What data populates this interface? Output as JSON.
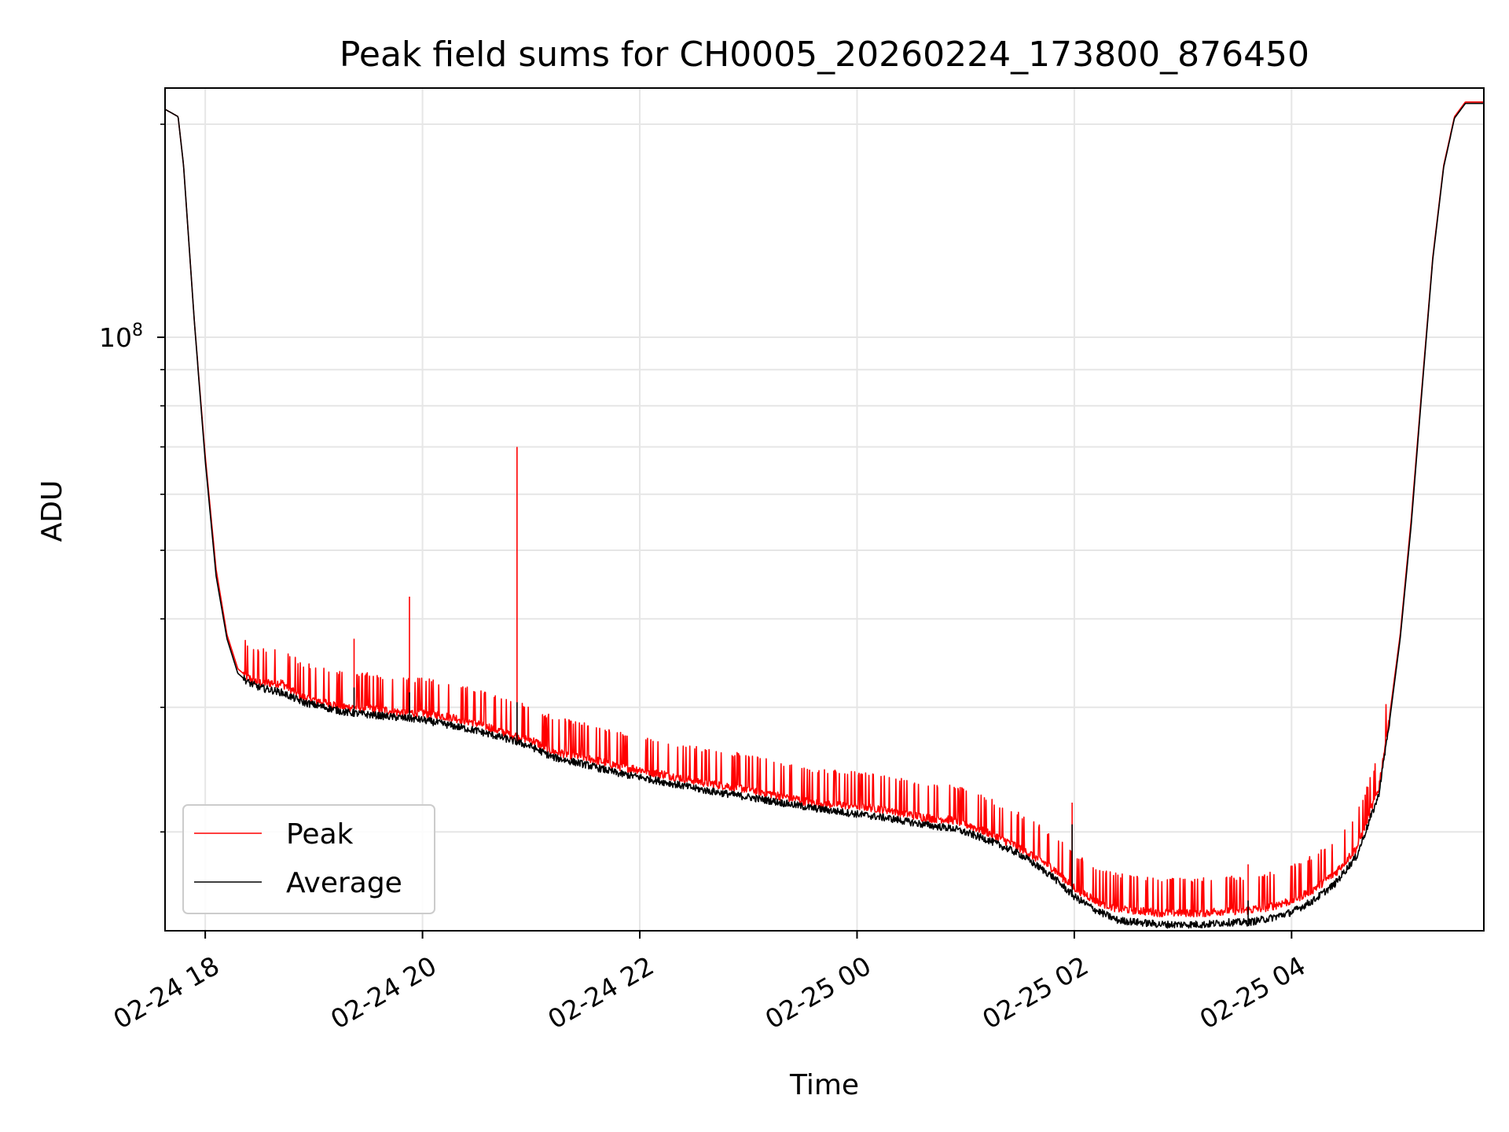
{
  "chart_data": {
    "type": "line",
    "title": "Peak field sums for CH0005_20260224_173800_876450",
    "xlabel": "Time",
    "ylabel": "ADU",
    "yscale": "log",
    "ylim": [
      14500000,
      225000000
    ],
    "xlim_hours": [
      -0.37,
      11.77
    ],
    "x_unit": "hours since 02-24 18:00",
    "grid": true,
    "legend_position": "lower-left",
    "x_tick_labels": [
      "02-24 18",
      "02-24 20",
      "02-24 22",
      "02-25 00",
      "02-25 02",
      "02-25 04"
    ],
    "x_tick_hours": [
      0,
      2,
      4,
      6,
      8,
      10
    ],
    "y_major_label": "10",
    "y_major_exponent": "8",
    "y_major_value": 100000000,
    "y_minor_values": [
      20000000,
      30000000,
      40000000,
      50000000,
      60000000,
      70000000,
      80000000,
      90000000,
      200000000
    ],
    "series": [
      {
        "name": "Peak",
        "color": "#ff0000",
        "x": [
          -0.37,
          -0.25,
          -0.2,
          -0.1,
          0.0,
          0.1,
          0.2,
          0.3,
          0.4,
          0.5,
          0.7,
          0.9,
          1.1,
          1.3,
          1.5,
          1.8,
          2.0,
          2.3,
          2.5,
          2.8,
          3.0,
          3.2,
          3.5,
          3.8,
          4.0,
          4.3,
          4.6,
          5.0,
          5.3,
          5.6,
          6.0,
          6.3,
          6.6,
          6.9,
          7.2,
          7.5,
          7.8,
          8.0,
          8.2,
          8.4,
          8.6,
          8.8,
          9.0,
          9.2,
          9.4,
          9.6,
          9.8,
          10.0,
          10.2,
          10.4,
          10.6,
          10.8,
          10.9,
          11.0,
          11.1,
          11.2,
          11.3,
          11.4,
          11.5,
          11.6,
          11.77
        ],
        "y": [
          210000000,
          205000000,
          175000000,
          105000000,
          68000000,
          47000000,
          38000000,
          34000000,
          33000000,
          32500000,
          32500000,
          31000000,
          30500000,
          30000000,
          30000000,
          29500000,
          29500000,
          29000000,
          28500000,
          27500000,
          27000000,
          26000000,
          25500000,
          24800000,
          24500000,
          24000000,
          23500000,
          23000000,
          22500000,
          22000000,
          21800000,
          21500000,
          21000000,
          20800000,
          20000000,
          19000000,
          17800000,
          16700000,
          16000000,
          15600000,
          15500000,
          15400000,
          15400000,
          15400000,
          15500000,
          15500000,
          15700000,
          16000000,
          16600000,
          17500000,
          19000000,
          23000000,
          29000000,
          38000000,
          55000000,
          85000000,
          130000000,
          175000000,
          205000000,
          215000000,
          215000000
        ],
        "spikes": [
          {
            "x": 1.37,
            "y": 37500000
          },
          {
            "x": 1.88,
            "y": 43000000
          },
          {
            "x": 2.87,
            "y": 70000000
          },
          {
            "x": 7.98,
            "y": 22000000
          },
          {
            "x": 9.6,
            "y": 18000000
          }
        ]
      },
      {
        "name": "Average",
        "color": "#000000",
        "x": [
          -0.37,
          -0.25,
          -0.2,
          -0.1,
          0.0,
          0.1,
          0.2,
          0.3,
          0.4,
          0.5,
          0.7,
          0.9,
          1.1,
          1.3,
          1.5,
          1.8,
          2.0,
          2.3,
          2.5,
          2.8,
          3.0,
          3.2,
          3.5,
          3.8,
          4.0,
          4.3,
          4.6,
          5.0,
          5.3,
          5.6,
          6.0,
          6.3,
          6.6,
          6.9,
          7.2,
          7.5,
          7.8,
          8.0,
          8.2,
          8.4,
          8.6,
          8.8,
          9.0,
          9.2,
          9.4,
          9.6,
          9.8,
          10.0,
          10.2,
          10.4,
          10.6,
          10.8,
          10.9,
          11.0,
          11.1,
          11.2,
          11.3,
          11.4,
          11.5,
          11.6,
          11.77
        ],
        "y": [
          210000000,
          205000000,
          175000000,
          105000000,
          67000000,
          46000000,
          37500000,
          33500000,
          32500000,
          32000000,
          31500000,
          30500000,
          30000000,
          29500000,
          29300000,
          29000000,
          28800000,
          28200000,
          27800000,
          27000000,
          26400000,
          25500000,
          24900000,
          24200000,
          23900000,
          23400000,
          22900000,
          22400000,
          22000000,
          21600000,
          21200000,
          20900000,
          20500000,
          20200000,
          19500000,
          18600000,
          17300000,
          16200000,
          15500000,
          15000000,
          14900000,
          14800000,
          14800000,
          14800000,
          14900000,
          14900000,
          15100000,
          15400000,
          16000000,
          16900000,
          18500000,
          22500000,
          28500000,
          37500000,
          54000000,
          84000000,
          129000000,
          174000000,
          204000000,
          214000000,
          214000000
        ],
        "spikes": [
          {
            "x": 1.37,
            "y": 32000000
          },
          {
            "x": 1.88,
            "y": 31500000
          },
          {
            "x": 2.87,
            "y": 30500000
          },
          {
            "x": 7.98,
            "y": 20500000
          },
          {
            "x": 9.6,
            "y": 16000000
          }
        ]
      }
    ]
  }
}
